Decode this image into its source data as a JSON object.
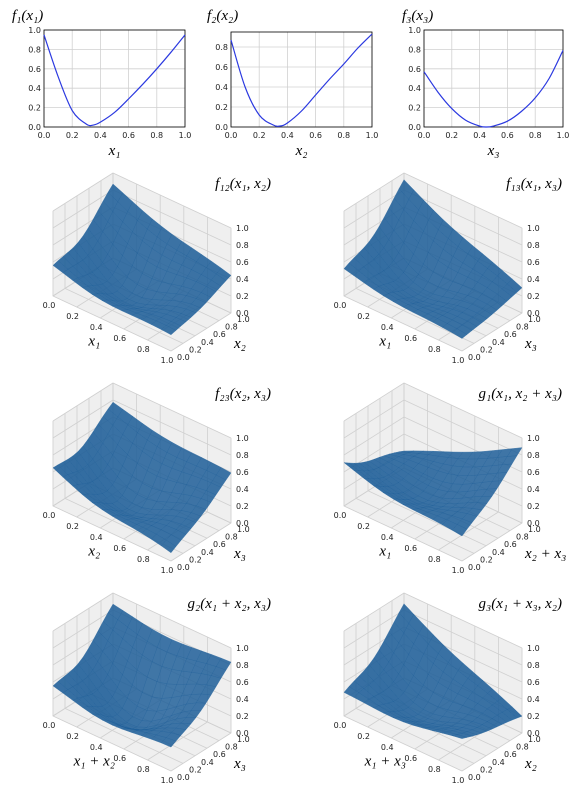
{
  "colors": {
    "line": "#2b39e0",
    "surface": "#1f5f99",
    "surface_dark": "#123f66",
    "pane": "#efefef",
    "grid": "#d0d0d0"
  },
  "chart_data": [
    {
      "id": "f1",
      "type": "line",
      "title": "f₁(x₁)",
      "xlabel": "x₁",
      "ylabel": "",
      "xlim": [
        0,
        1
      ],
      "ylim": [
        0,
        1.0
      ],
      "xticks": [
        "0.0",
        "0.2",
        "0.4",
        "0.6",
        "0.8",
        "1.0"
      ],
      "yticks": [
        "0.0",
        "0.2",
        "0.4",
        "0.6",
        "0.8",
        "1.0"
      ],
      "x": [
        0,
        0.1,
        0.2,
        0.3,
        0.35,
        0.4,
        0.5,
        0.6,
        0.7,
        0.8,
        0.9,
        1.0
      ],
      "y": [
        0.95,
        0.52,
        0.17,
        0.03,
        0.02,
        0.05,
        0.15,
        0.29,
        0.44,
        0.6,
        0.77,
        0.95
      ]
    },
    {
      "id": "f2",
      "type": "line",
      "title": "f₂(x₂)",
      "xlabel": "x₂",
      "ylabel": "",
      "xlim": [
        0,
        1
      ],
      "ylim": [
        0,
        0.95
      ],
      "xticks": [
        "0.0",
        "0.2",
        "0.4",
        "0.6",
        "0.8",
        "1.0"
      ],
      "yticks": [
        "0.0",
        "0.2",
        "0.4",
        "0.6",
        "0.8"
      ],
      "x": [
        0,
        0.1,
        0.2,
        0.3,
        0.35,
        0.4,
        0.5,
        0.6,
        0.7,
        0.8,
        0.9,
        1.0
      ],
      "y": [
        0.87,
        0.4,
        0.12,
        0.02,
        0.01,
        0.04,
        0.16,
        0.32,
        0.48,
        0.63,
        0.79,
        0.93
      ]
    },
    {
      "id": "f3",
      "type": "line",
      "title": "f₃(x₃)",
      "xlabel": "x₃",
      "ylabel": "",
      "xlim": [
        0,
        1
      ],
      "ylim": [
        0,
        1.0
      ],
      "xticks": [
        "0.0",
        "0.2",
        "0.4",
        "0.6",
        "0.8",
        "1.0"
      ],
      "yticks": [
        "0.0",
        "0.2",
        "0.4",
        "0.6",
        "0.8",
        "1.0"
      ],
      "x": [
        0,
        0.1,
        0.2,
        0.3,
        0.4,
        0.45,
        0.5,
        0.6,
        0.7,
        0.8,
        0.9,
        1.0
      ],
      "y": [
        0.57,
        0.36,
        0.19,
        0.07,
        0.01,
        0.0,
        0.01,
        0.06,
        0.16,
        0.3,
        0.5,
        0.79
      ]
    },
    {
      "id": "f12",
      "type": "surface",
      "title": "f₁₂(x₁, x₂)",
      "xlabel": "x₁",
      "ylabel": "x₂",
      "xticks": [
        "0.0",
        "0.2",
        "0.4",
        "0.6",
        "0.8",
        "1.0"
      ],
      "yticks": [
        "0.0",
        "0.2",
        "0.4",
        "0.6",
        "0.8",
        "1.0"
      ],
      "zticks": [
        "0.0",
        "0.2",
        "0.4",
        "0.6",
        "0.8",
        "1.0"
      ],
      "zlim": [
        0,
        1
      ],
      "corners": [
        0.4,
        0.2,
        0.9,
        0.45
      ],
      "valley": 0.05
    },
    {
      "id": "f13",
      "type": "surface",
      "title": "f₁₃(x₁, x₃)",
      "xlabel": "x₁",
      "ylabel": "x₃",
      "xticks": [
        "0.0",
        "0.2",
        "0.4",
        "0.6",
        "0.8",
        "1.0"
      ],
      "yticks": [
        "0.0",
        "0.2",
        "0.4",
        "0.6",
        "0.8",
        "1.0"
      ],
      "zticks": [
        "0.0",
        "0.2",
        "0.4",
        "0.6",
        "0.8",
        "1.0"
      ],
      "zlim": [
        0,
        1
      ],
      "corners": [
        0.35,
        0.15,
        0.95,
        0.3
      ],
      "valley": 0.1
    },
    {
      "id": "f23",
      "type": "surface",
      "title": "f₂₃(x₂, x₃)",
      "xlabel": "x₂",
      "ylabel": "x₃",
      "xticks": [
        "0.0",
        "0.2",
        "0.4",
        "0.6",
        "0.8",
        "1.0"
      ],
      "yticks": [
        "0.0",
        "0.2",
        "0.4",
        "0.6",
        "0.8",
        "1.0"
      ],
      "zticks": [
        "0.0",
        "0.2",
        "0.4",
        "0.6",
        "0.8",
        "1.0"
      ],
      "zlim": [
        0,
        1
      ],
      "corners": [
        0.5,
        0.1,
        0.8,
        0.6
      ],
      "valley": 0.05
    },
    {
      "id": "g1",
      "type": "surface",
      "title": "g₁(x₁, x₂ + x₃)",
      "xlabel": "x₁",
      "ylabel": "x₂ + x₃",
      "xticks": [
        "0.0",
        "0.2",
        "0.4",
        "0.6",
        "0.8",
        "1.0"
      ],
      "yticks": [
        "0.0",
        "0.2",
        "0.4",
        "0.6",
        "0.8",
        "1.0"
      ],
      "zticks": [
        "0.0",
        "0.2",
        "0.4",
        "0.6",
        "0.8",
        "1.0"
      ],
      "zlim": [
        0,
        1
      ],
      "corners": [
        0.55,
        0.3,
        0.2,
        0.9
      ],
      "valley": 0.2
    },
    {
      "id": "g2",
      "type": "surface",
      "title": "g₂(x₁ + x₂, x₃)",
      "xlabel": "x₁ + x₂",
      "ylabel": "x₃",
      "xticks": [
        "0.0",
        "0.2",
        "0.4",
        "0.6",
        "0.8",
        "1.0"
      ],
      "yticks": [
        "0.0",
        "0.2",
        "0.4",
        "0.6",
        "0.8",
        "1.0"
      ],
      "zticks": [
        "0.0",
        "0.2",
        "0.4",
        "0.6",
        "0.8",
        "1.0"
      ],
      "zlim": [
        0,
        1
      ],
      "corners": [
        0.4,
        0.3,
        0.9,
        0.85
      ],
      "valley": 0.0
    },
    {
      "id": "g3",
      "type": "surface",
      "title": "g₃(x₁ + x₃, x₂)",
      "xlabel": "x₁ + x₃",
      "ylabel": "x₂",
      "xticks": [
        "0.0",
        "0.2",
        "0.4",
        "0.6",
        "0.8",
        "1.0"
      ],
      "yticks": [
        "0.0",
        "0.2",
        "0.4",
        "0.6",
        "0.8",
        "1.0"
      ],
      "zticks": [
        "0.0",
        "0.2",
        "0.4",
        "0.6",
        "0.8",
        "1.0"
      ],
      "zlim": [
        0,
        1
      ],
      "corners": [
        0.3,
        0.4,
        0.9,
        0.2
      ],
      "valley": 0.1
    }
  ]
}
